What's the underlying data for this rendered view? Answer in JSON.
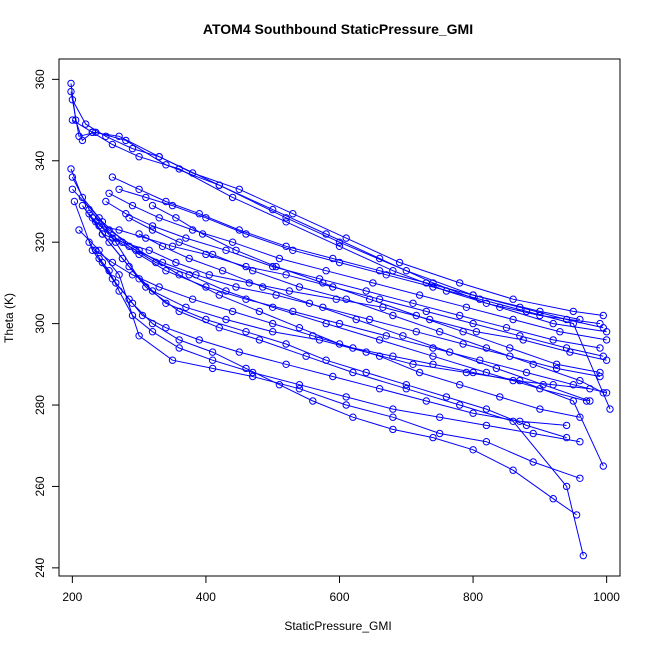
{
  "chart_data": {
    "type": "line",
    "title": "ATOM4 Southbound StaticPressure_GMI",
    "xlabel": "StaticPressure_GMI",
    "ylabel": "Theta (K)",
    "xlim": [
      180,
      1020
    ],
    "ylim": [
      238,
      365
    ],
    "xticks": [
      200,
      400,
      600,
      800,
      1000
    ],
    "yticks": [
      240,
      260,
      280,
      300,
      320,
      340,
      360
    ],
    "color": "#0000ff",
    "marker": "open-circle",
    "grid": false,
    "legend": "none",
    "series": [
      {
        "x": [
          198,
          205,
          215,
          230,
          270,
          330,
          420,
          520,
          600,
          700,
          800,
          900,
          960
        ],
        "y": [
          359,
          350,
          345,
          347,
          346,
          341,
          334,
          326,
          320,
          313,
          307,
          303,
          301
        ]
      },
      {
        "x": [
          198,
          210,
          235,
          280,
          340,
          420,
          500,
          580,
          660,
          740,
          820,
          900,
          990
        ],
        "y": [
          357,
          346,
          347,
          345,
          339,
          334,
          328,
          322,
          316,
          310,
          305,
          302,
          300
        ]
      },
      {
        "x": [
          200,
          220,
          250,
          290,
          330,
          380,
          450,
          530,
          610,
          690,
          780,
          860,
          950,
          995
        ],
        "y": [
          355,
          349,
          346,
          343,
          341,
          337,
          333,
          327,
          321,
          315,
          310,
          306,
          303,
          302
        ]
      },
      {
        "x": [
          200,
          230,
          260,
          300,
          360,
          440,
          520,
          600,
          680,
          760,
          840,
          920,
          1000
        ],
        "y": [
          350,
          347,
          344,
          341,
          338,
          331,
          325,
          319,
          313,
          308,
          304,
          300,
          298
        ]
      },
      {
        "x": [
          198,
          215,
          245,
          285,
          325,
          375,
          430,
          500,
          580,
          660,
          740,
          820,
          900,
          970
        ],
        "y": [
          338,
          331,
          325,
          319,
          315,
          312,
          308,
          304,
          300,
          296,
          292,
          288,
          284,
          281
        ]
      },
      {
        "x": [
          200,
          225,
          255,
          300,
          360,
          420,
          480,
          540,
          600,
          660,
          720,
          780,
          840,
          900,
          960
        ],
        "y": [
          336,
          328,
          323,
          318,
          312,
          307,
          303,
          299,
          295,
          292,
          288,
          285,
          282,
          279,
          277
        ]
      },
      {
        "x": [
          200,
          240,
          265,
          300,
          340,
          400,
          460,
          520,
          580,
          640,
          700,
          760,
          820,
          880,
          940
        ],
        "y": [
          333,
          326,
          320,
          311,
          305,
          301,
          298,
          295,
          291,
          288,
          285,
          282,
          279,
          275,
          272
        ]
      },
      {
        "x": [
          203,
          230,
          260,
          290,
          320,
          360,
          410,
          460,
          510,
          560,
          620,
          680,
          740,
          800,
          860,
          920,
          955
        ],
        "y": [
          330,
          318,
          311,
          305,
          300,
          296,
          293,
          289,
          285,
          281,
          277,
          274,
          272,
          269,
          264,
          257,
          253
        ]
      },
      {
        "x": [
          210,
          240,
          270,
          300,
          350,
          410,
          470,
          540,
          610,
          680,
          750,
          820,
          890,
          960
        ],
        "y": [
          323,
          318,
          312,
          297,
          291,
          289,
          287,
          284,
          280,
          277,
          273,
          271,
          266,
          262
        ]
      },
      {
        "x": [
          215,
          245,
          275,
          310,
          360,
          420,
          480,
          550,
          620,
          700,
          780,
          860,
          940,
          965
        ],
        "y": [
          329,
          322,
          316,
          309,
          303,
          299,
          296,
          292,
          288,
          284,
          280,
          276,
          260,
          243
        ]
      },
      {
        "x": [
          225,
          255,
          285,
          320,
          370,
          430,
          500,
          570,
          640,
          710,
          790,
          870,
          950,
          995
        ],
        "y": [
          327,
          320,
          314,
          308,
          304,
          301,
          298,
          296,
          293,
          290,
          288,
          286,
          281,
          265
        ]
      },
      {
        "x": [
          230,
          260,
          300,
          340,
          400,
          460,
          530,
          600,
          670,
          740,
          810,
          880,
          950,
          1000
        ],
        "y": [
          326,
          321,
          317,
          313,
          309,
          306,
          303,
          300,
          297,
          294,
          291,
          288,
          285,
          283
        ]
      },
      {
        "x": [
          235,
          265,
          295,
          335,
          385,
          445,
          505,
          575,
          645,
          715,
          785,
          855,
          925,
          990
        ],
        "y": [
          325,
          321,
          318,
          315,
          312,
          309,
          307,
          304,
          301,
          298,
          295,
          292,
          289,
          287
        ]
      },
      {
        "x": [
          240,
          270,
          310,
          350,
          400,
          460,
          520,
          590,
          660,
          730,
          800,
          870,
          940,
          995
        ],
        "y": [
          324,
          323,
          321,
          319,
          317,
          314,
          312,
          309,
          306,
          303,
          300,
          297,
          294,
          292
        ]
      },
      {
        "x": [
          245,
          275,
          315,
          355,
          405,
          465,
          525,
          595,
          665,
          735,
          805,
          875,
          945,
          1000
        ],
        "y": [
          322,
          320,
          318,
          315,
          312,
          310,
          308,
          306,
          304,
          301,
          298,
          296,
          293,
          291
        ]
      },
      {
        "x": [
          250,
          280,
          320,
          370,
          430,
          500,
          570,
          640,
          710,
          780,
          850,
          920,
          990
        ],
        "y": [
          330,
          327,
          324,
          321,
          318,
          314,
          311,
          308,
          305,
          302,
          299,
          296,
          294
        ]
      },
      {
        "x": [
          255,
          290,
          330,
          380,
          440,
          510,
          580,
          650,
          720,
          790,
          860,
          930,
          1000
        ],
        "y": [
          332,
          329,
          326,
          323,
          320,
          316,
          313,
          310,
          307,
          304,
          301,
          298,
          296
        ]
      },
      {
        "x": [
          260,
          300,
          340,
          390,
          450,
          520,
          590,
          660,
          730,
          800,
          870,
          940,
          995
        ],
        "y": [
          336,
          333,
          330,
          327,
          323,
          319,
          316,
          313,
          310,
          307,
          304,
          301,
          299
        ]
      },
      {
        "x": [
          270,
          310,
          350,
          400,
          460,
          530,
          600,
          670,
          740,
          810,
          880,
          950,
          1005
        ],
        "y": [
          333,
          331,
          329,
          326,
          322,
          318,
          315,
          312,
          309,
          306,
          303,
          300,
          279
        ]
      },
      {
        "x": [
          285,
          320,
          360,
          410,
          470,
          540,
          610,
          680,
          750,
          820,
          890,
          960,
          995
        ],
        "y": [
          326,
          323,
          320,
          317,
          313,
          309,
          306,
          302,
          298,
          294,
          290,
          286,
          283
        ]
      },
      {
        "x": [
          300,
          335,
          375,
          425,
          485,
          555,
          625,
          695,
          765,
          835,
          905,
          975
        ],
        "y": [
          322,
          319,
          316,
          313,
          309,
          305,
          301,
          297,
          293,
          289,
          285,
          281
        ]
      },
      {
        "x": [
          320,
          355,
          395,
          445,
          505,
          575,
          645,
          715,
          785,
          855,
          925,
          990
        ],
        "y": [
          329,
          326,
          322,
          318,
          314,
          310,
          306,
          302,
          298,
          294,
          290,
          288
        ]
      },
      {
        "x": [
          240,
          255,
          270,
          290,
          320,
          360,
          410,
          470,
          540,
          610,
          680,
          750,
          820,
          890,
          960
        ],
        "y": [
          316,
          313,
          308,
          302,
          298,
          294,
          291,
          288,
          285,
          282,
          279,
          277,
          275,
          273,
          271
        ]
      },
      {
        "x": [
          225,
          245,
          265,
          285,
          305,
          340,
          390,
          450,
          520,
          590,
          660,
          730,
          800,
          870,
          940
        ],
        "y": [
          320,
          315,
          310,
          306,
          302,
          299,
          296,
          293,
          290,
          287,
          284,
          281,
          278,
          276,
          275
        ]
      },
      {
        "x": [
          235,
          260,
          290,
          330,
          380,
          440,
          500,
          560,
          620,
          680,
          740,
          800,
          860,
          920,
          975
        ],
        "y": [
          318,
          315,
          312,
          309,
          306,
          303,
          300,
          297,
          294,
          292,
          290,
          288,
          286,
          285,
          284
        ]
      }
    ]
  }
}
